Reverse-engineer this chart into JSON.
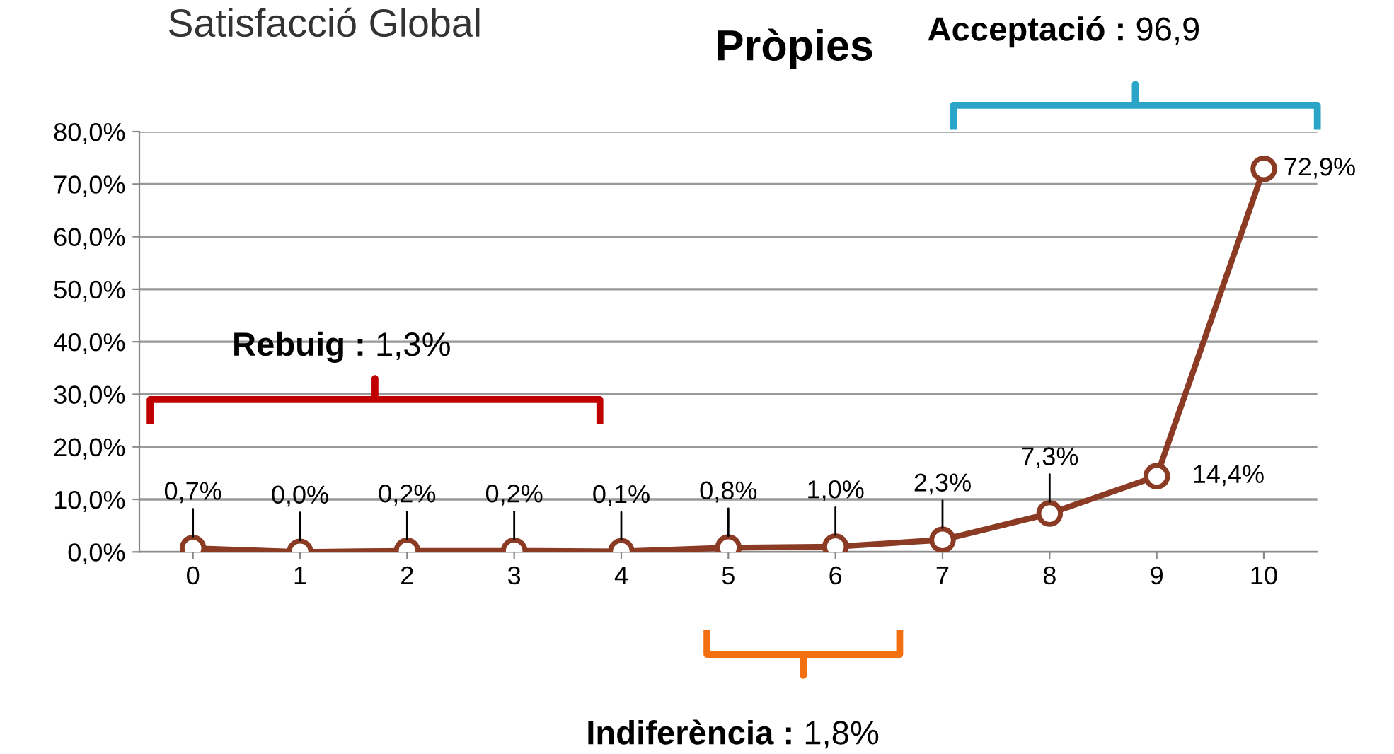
{
  "chart_data": {
    "type": "line",
    "title": "Pròpies",
    "subtitle": "Satisfacció Global",
    "categories": [
      "0",
      "1",
      "2",
      "3",
      "4",
      "5",
      "6",
      "7",
      "8",
      "9",
      "10"
    ],
    "series": [
      {
        "color": "#8b3a24",
        "values": [
          0.7,
          0.0,
          0.2,
          0.2,
          0.1,
          0.8,
          1.0,
          2.3,
          7.3,
          14.4,
          72.9
        ],
        "value_labels": [
          "0,7%",
          "0,0%",
          "0,2%",
          "0,2%",
          "0,1%",
          "0,8%",
          "1,0%",
          "2,3%",
          "7,3%",
          "14,4%",
          "72,9%"
        ]
      }
    ],
    "ylim": [
      0,
      80
    ],
    "yticks": [
      {
        "value": 0,
        "label": "0,0%"
      },
      {
        "value": 10,
        "label": "10,0%"
      },
      {
        "value": 20,
        "label": "20,0%"
      },
      {
        "value": 30,
        "label": "30,0%"
      },
      {
        "value": 40,
        "label": "40,0%"
      },
      {
        "value": 50,
        "label": "50,0%"
      },
      {
        "value": 60,
        "label": "60,0%"
      },
      {
        "value": 70,
        "label": "70,0%"
      },
      {
        "value": 80,
        "label": "80,0%"
      }
    ],
    "grid": "y",
    "marker": "circle",
    "line_style": "solid",
    "legend": false,
    "annotations": [
      "Rebuig : 1,3%",
      "Acceptació : 96,9",
      "Indiferència : 1,8%"
    ]
  }
}
